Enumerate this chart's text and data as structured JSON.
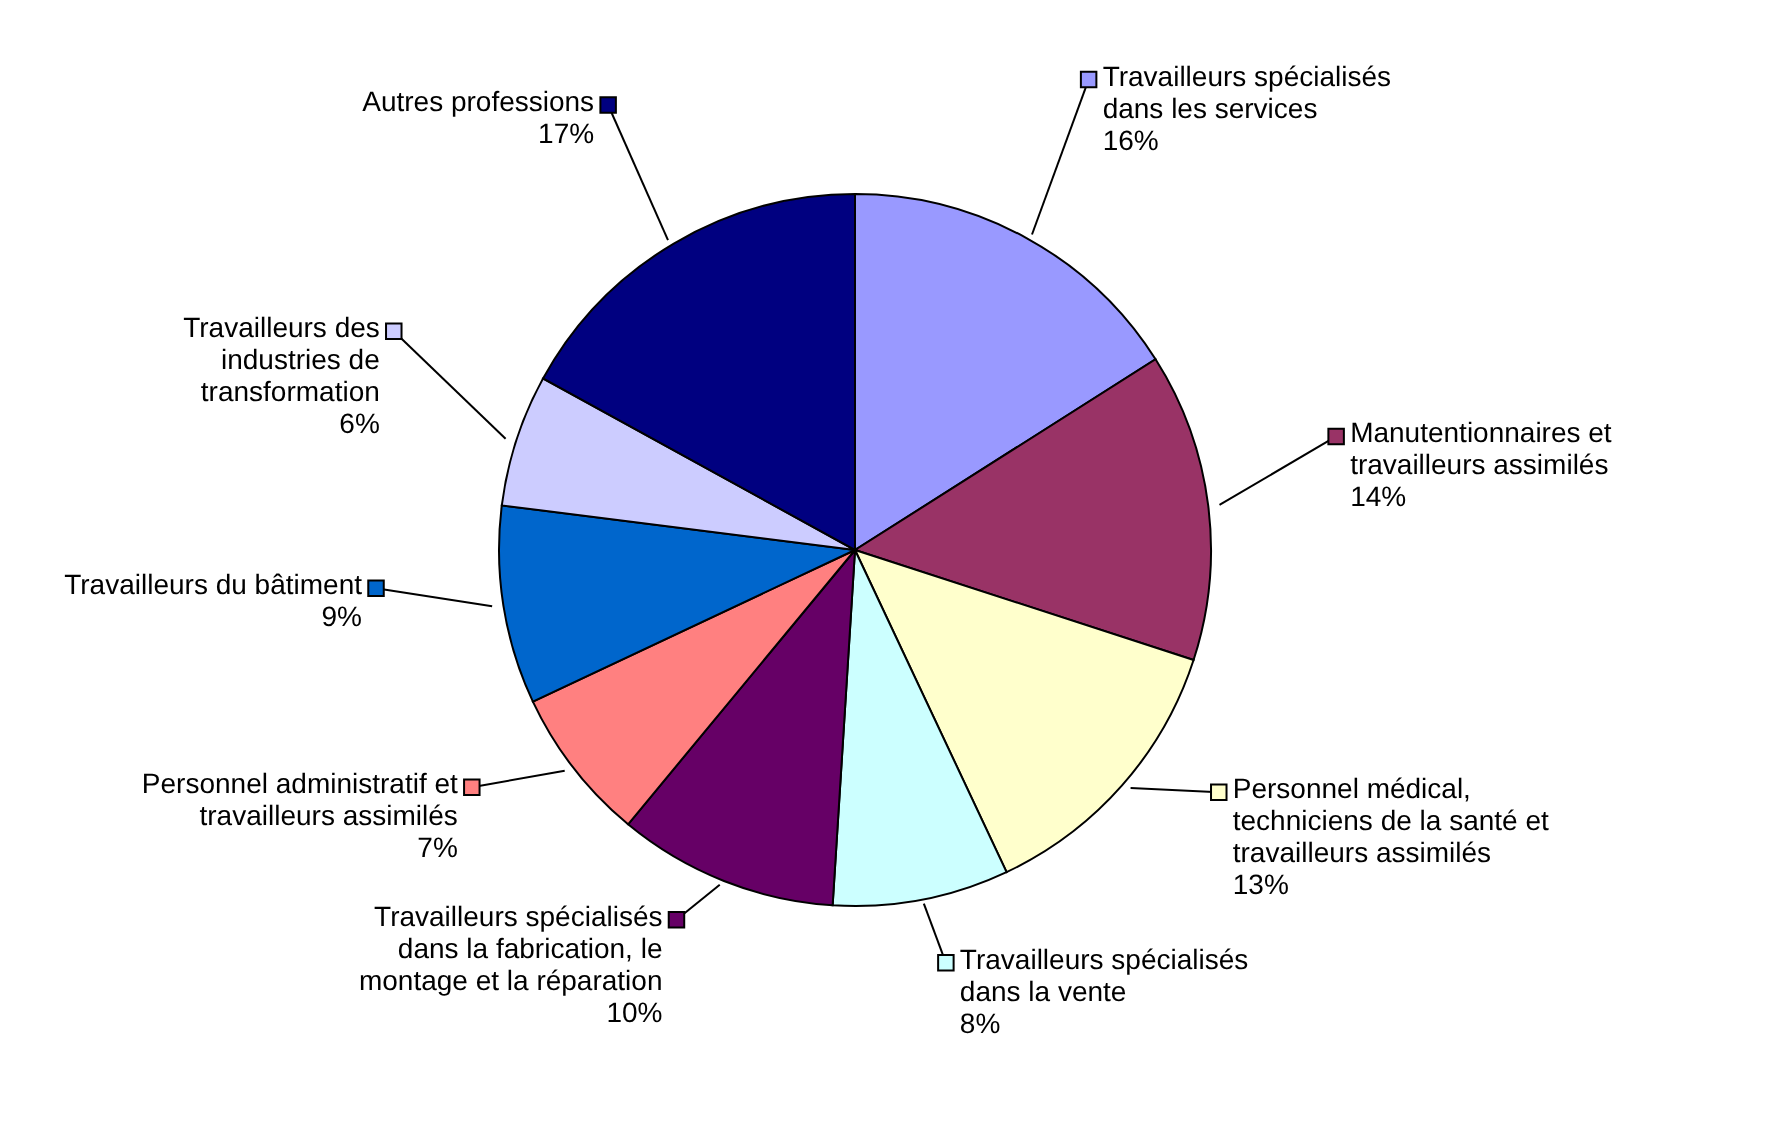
{
  "chart_data": {
    "type": "pie",
    "categories": [
      "Travailleurs spécialisés dans les services",
      "Manutentionnaires et travailleurs assimilés",
      "Personnel médical, techniciens de la santé et travailleurs assimilés",
      "Travailleurs spécialisés dans la vente",
      "Travailleurs spécialisés dans la fabrication, le montage et la réparation",
      "Personnel administratif et travailleurs assimilés",
      "Travailleurs du bâtiment",
      "Travailleurs des industries de transformation",
      "Autres professions"
    ],
    "values": [
      16,
      14,
      13,
      8,
      10,
      7,
      9,
      6,
      17
    ],
    "colors": [
      "#9999ff",
      "#993366",
      "#ffffcc",
      "#ccffff",
      "#660066",
      "#ff8080",
      "#0066cc",
      "#ccccff",
      "#000080"
    ],
    "value_labels": [
      "16%",
      "14%",
      "13%",
      "8%",
      "10%",
      "7%",
      "9%",
      "6%",
      "17%"
    ],
    "legend": "left"
  }
}
